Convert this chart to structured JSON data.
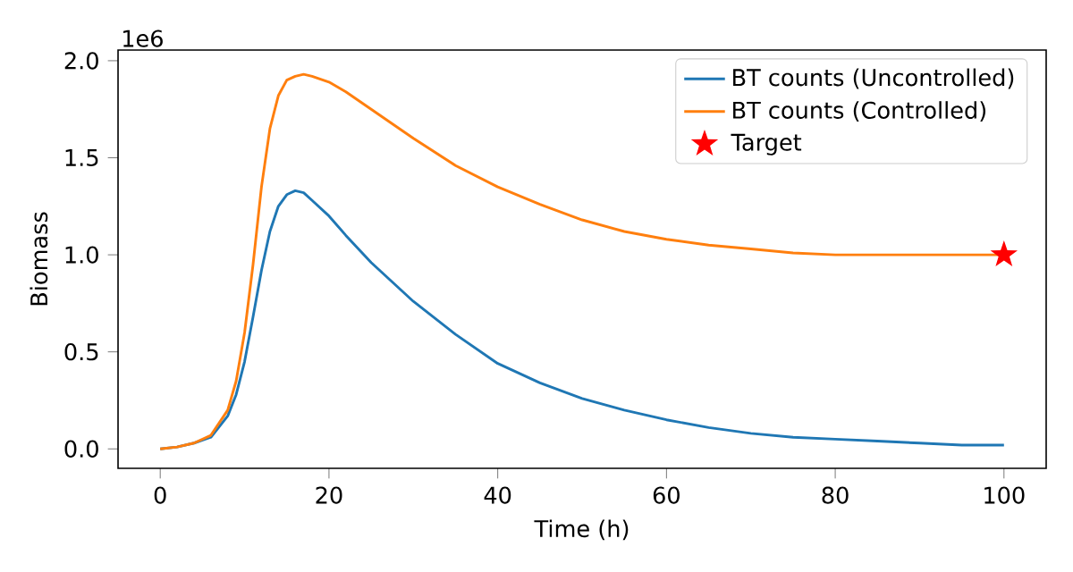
{
  "chart_data": {
    "type": "line",
    "xlabel": "Time (h)",
    "ylabel": "Biomass",
    "annotations": [
      "1e6"
    ],
    "xlim": [
      -5,
      105
    ],
    "xticks": [
      0,
      20,
      40,
      60,
      80,
      100
    ],
    "ylim": [
      -0.1,
      2.055
    ],
    "yticks": [
      {
        "value": 0,
        "label": "0.0"
      },
      0.5,
      {
        "value": 1,
        "label": "1.0"
      },
      1.5,
      {
        "value": 2,
        "label": "2.0"
      }
    ],
    "legend": "top right",
    "series": [
      {
        "name": "BT counts (Uncontrolled)",
        "color": "#1f77b4",
        "x": [
          0,
          2,
          4,
          6,
          8,
          9,
          10,
          11,
          12,
          13,
          14,
          15,
          16,
          17,
          18,
          20,
          22,
          25,
          30,
          35,
          40,
          45,
          50,
          55,
          60,
          65,
          70,
          75,
          80,
          85,
          90,
          95,
          100
        ],
        "values": [
          0.0,
          0.01,
          0.03,
          0.06,
          0.17,
          0.28,
          0.45,
          0.68,
          0.92,
          1.12,
          1.25,
          1.31,
          1.33,
          1.32,
          1.28,
          1.2,
          1.1,
          0.96,
          0.76,
          0.59,
          0.44,
          0.34,
          0.26,
          0.2,
          0.15,
          0.11,
          0.08,
          0.06,
          0.05,
          0.04,
          0.03,
          0.02,
          0.02
        ]
      },
      {
        "name": "BT counts (Controlled)",
        "color": "#ff7f0e",
        "x": [
          0,
          2,
          4,
          6,
          8,
          9,
          10,
          11,
          12,
          13,
          14,
          15,
          16,
          17,
          18,
          20,
          22,
          25,
          30,
          35,
          40,
          45,
          50,
          55,
          60,
          65,
          70,
          75,
          80,
          90,
          100
        ],
        "values": [
          0.0,
          0.01,
          0.03,
          0.07,
          0.2,
          0.35,
          0.6,
          0.95,
          1.35,
          1.65,
          1.82,
          1.9,
          1.92,
          1.93,
          1.92,
          1.89,
          1.84,
          1.75,
          1.6,
          1.46,
          1.35,
          1.26,
          1.18,
          1.12,
          1.08,
          1.05,
          1.03,
          1.01,
          1.0,
          1.0,
          1.0
        ]
      },
      {
        "name": "Target",
        "type": "scatter",
        "marker": "star",
        "color": "#ff0000",
        "x": [
          100
        ],
        "values": [
          1.0
        ]
      }
    ]
  }
}
